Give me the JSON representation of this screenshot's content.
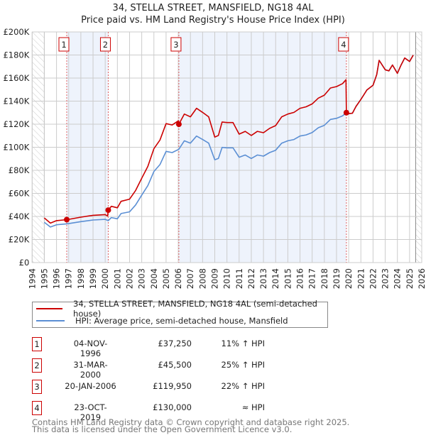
{
  "title": "34, STELLA STREET, MANSFIELD, NG18 4AL",
  "subtitle": "Price paid vs. HM Land Registry's House Price Index (HPI)",
  "colors": {
    "price": "#cc0000",
    "hpi": "#5b8fd4",
    "shade": "#eef3fc",
    "grid": "#cccccc"
  },
  "chart_data": {
    "type": "line",
    "title": "Price paid vs. HM Land Registry's House Price Index (HPI)",
    "xlim": [
      1994,
      2026
    ],
    "ylim": [
      0,
      200000
    ],
    "x_ticks": [
      "1994",
      "1995",
      "1996",
      "1997",
      "1998",
      "1999",
      "2000",
      "2001",
      "2002",
      "2003",
      "2004",
      "2005",
      "2006",
      "2007",
      "2008",
      "2009",
      "2010",
      "2011",
      "2012",
      "2013",
      "2014",
      "2015",
      "2016",
      "2017",
      "2018",
      "2019",
      "2020",
      "2021",
      "2022",
      "2023",
      "2024",
      "2025",
      "2026"
    ],
    "y_ticks": [
      {
        "v": 0,
        "label": "£0"
      },
      {
        "v": 20000,
        "label": "£20K"
      },
      {
        "v": 40000,
        "label": "£40K"
      },
      {
        "v": 60000,
        "label": "£60K"
      },
      {
        "v": 80000,
        "label": "£80K"
      },
      {
        "v": 100000,
        "label": "£100K"
      },
      {
        "v": 120000,
        "label": "£120K"
      },
      {
        "v": 140000,
        "label": "£140K"
      },
      {
        "v": 160000,
        "label": "£160K"
      },
      {
        "v": 180000,
        "label": "£180K"
      },
      {
        "v": 200000,
        "label": "£200K"
      }
    ],
    "grid": true,
    "series": [
      {
        "name": "34, STELLA STREET, MANSFIELD, NG18 4AL (semi-detached house)",
        "color": "#cc0000",
        "x": [
          1995,
          1995.5,
          1996,
          1996.84,
          1997,
          1998,
          1999,
          2000,
          2000.2,
          2000.25,
          2000.5,
          2001,
          2001.3,
          2002,
          2002.5,
          2003,
          2003.5,
          2004,
          2004.5,
          2005,
          2005.5,
          2006,
          2006.05,
          2006.5,
          2007,
          2007.5,
          2008,
          2008.5,
          2009,
          2009.3,
          2009.6,
          2010,
          2010.5,
          2011,
          2011.5,
          2012,
          2012.5,
          2013,
          2013.5,
          2014,
          2014.5,
          2015,
          2015.5,
          2016,
          2016.5,
          2017,
          2017.5,
          2018,
          2018.5,
          2019,
          2019.5,
          2019.78,
          2019.81,
          2020,
          2020.3,
          2020.6,
          2021,
          2021.5,
          2022,
          2022.3,
          2022.5,
          2023,
          2023.3,
          2023.6,
          2024,
          2024.3,
          2024.6,
          2025,
          2025.3
        ],
        "y": [
          38.7,
          34.2,
          36.4,
          37.25,
          37.5,
          39.4,
          41.0,
          41.6,
          40.4,
          45.5,
          48.8,
          47.5,
          53.1,
          55.0,
          62.5,
          73.1,
          83.4,
          98.8,
          106.3,
          120.5,
          119.3,
          122.9,
          119.95,
          128.8,
          126.4,
          133.8,
          130.2,
          126.4,
          108.8,
          110.2,
          121.9,
          121.4,
          121.4,
          111.4,
          113.8,
          110.2,
          113.8,
          112.6,
          116.4,
          118.8,
          126.4,
          128.8,
          130.2,
          133.8,
          135.1,
          137.6,
          142.6,
          145.2,
          151.4,
          152.6,
          155.2,
          158.6,
          130.0,
          129.2,
          129.5,
          135.4,
          141.5,
          149.7,
          153.8,
          163.0,
          175.4,
          167.2,
          166.2,
          171.3,
          164.1,
          171.3,
          177.4,
          174.4,
          179.9
        ],
        "y_unit": "thousand GBP"
      },
      {
        "name": "HPI: Average price, semi-detached house, Mansfield",
        "color": "#5b8fd4",
        "x": [
          1995,
          1995.5,
          1996,
          1996.84,
          1997,
          1998,
          1999,
          2000,
          2000.25,
          2000.5,
          2001,
          2001.3,
          2002,
          2002.5,
          2003,
          2003.5,
          2004,
          2004.5,
          2005,
          2005.5,
          2006.05,
          2006.5,
          2007,
          2007.5,
          2008,
          2008.5,
          2009,
          2009.3,
          2009.6,
          2010,
          2010.5,
          2011,
          2011.5,
          2012,
          2012.5,
          2013,
          2013.5,
          2014,
          2014.5,
          2015,
          2015.5,
          2016,
          2016.5,
          2017,
          2017.5,
          2018,
          2018.5,
          2019,
          2019.5,
          2019.81,
          2020,
          2020.3,
          2020.6,
          2021,
          2021.5,
          2022,
          2022.3,
          2022.5,
          2023,
          2023.3,
          2023.6,
          2024,
          2024.3,
          2024.6,
          2025,
          2025.3
        ],
        "y": [
          34.9,
          30.8,
          32.8,
          33.6,
          33.8,
          35.5,
          36.9,
          37.5,
          36.4,
          39.0,
          38.0,
          42.5,
          44.0,
          50.0,
          58.5,
          66.7,
          79.0,
          85.0,
          96.4,
          95.4,
          98.3,
          105.6,
          103.6,
          109.7,
          106.7,
          103.6,
          89.2,
          90.3,
          99.9,
          99.5,
          99.5,
          91.3,
          93.3,
          90.3,
          93.3,
          92.3,
          95.4,
          97.4,
          103.6,
          105.6,
          106.7,
          109.7,
          110.7,
          112.8,
          116.9,
          119.0,
          124.1,
          125.1,
          127.2,
          130.0,
          129.2,
          129.5,
          135.4,
          141.5,
          149.7,
          153.8,
          163.0,
          175.4,
          167.2,
          166.2,
          171.3,
          164.1,
          171.3,
          177.4,
          174.4,
          179.9
        ],
        "y_unit": "thousand GBP"
      }
    ],
    "sales": [
      {
        "id": "1",
        "x": 1996.84,
        "price": 37250
      },
      {
        "id": "2",
        "x": 2000.25,
        "price": 45500
      },
      {
        "id": "3",
        "x": 2006.05,
        "price": 119950
      },
      {
        "id": "4",
        "x": 2019.81,
        "price": 130000
      }
    ],
    "shaded_ranges": [
      [
        1996.84,
        2000.25
      ],
      [
        2006.05,
        2019.81
      ]
    ],
    "hatched_ranges": [
      [
        1994,
        1995
      ],
      [
        2025.5,
        2026
      ]
    ],
    "legend_placement": "below"
  },
  "legend": [
    {
      "label": "34, STELLA STREET, MANSFIELD, NG18 4AL (semi-detached house)",
      "color": "#cc0000"
    },
    {
      "label": "HPI: Average price, semi-detached house, Mansfield",
      "color": "#5b8fd4"
    }
  ],
  "transactions": [
    {
      "num": "1",
      "date": "04-NOV-1996",
      "price": "£37,250",
      "rel": "11% ↑ HPI"
    },
    {
      "num": "2",
      "date": "31-MAR-2000",
      "price": "£45,500",
      "rel": "25% ↑ HPI"
    },
    {
      "num": "3",
      "date": "20-JAN-2006",
      "price": "£119,950",
      "rel": "22% ↑ HPI"
    },
    {
      "num": "4",
      "date": "23-OCT-2019",
      "price": "£130,000",
      "rel": "≈ HPI"
    }
  ],
  "footer": {
    "line1": "Contains HM Land Registry data © Crown copyright and database right 2025.",
    "line2": "This data is licensed under the Open Government Licence v3.0."
  }
}
